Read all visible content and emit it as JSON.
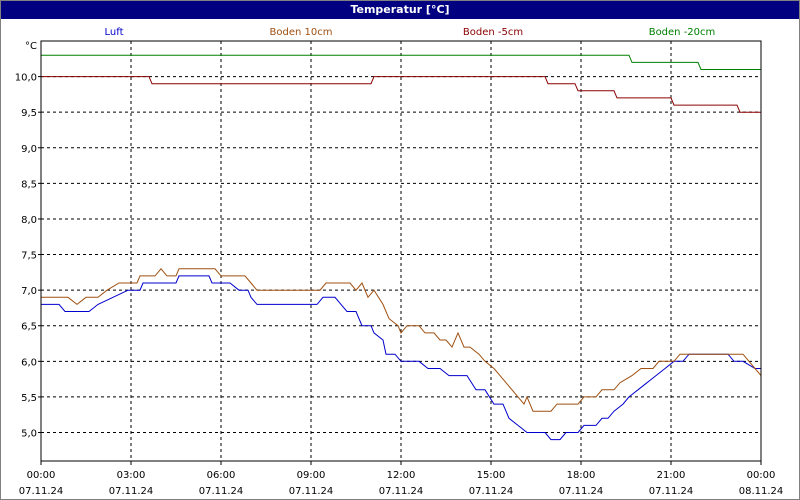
{
  "window": {
    "title": "Temperatur [°C]"
  },
  "chart_data": {
    "type": "line",
    "title": "Temperatur [°C]",
    "y_unit_label": "°C",
    "ylim": [
      4.6,
      10.5
    ],
    "yticks": [
      5.0,
      5.5,
      6.0,
      6.5,
      7.0,
      7.5,
      8.0,
      8.5,
      9.0,
      9.5,
      10.0
    ],
    "ytick_labels": [
      "5,0",
      "5,5",
      "6,0",
      "6,5",
      "7,0",
      "7,5",
      "8,0",
      "8,5",
      "9,0",
      "9,5",
      "10,0"
    ],
    "xlim": [
      0,
      24
    ],
    "xticks": [
      0,
      3,
      6,
      9,
      12,
      15,
      18,
      21,
      24
    ],
    "xtick_time_labels": [
      "00:00",
      "03:00",
      "06:00",
      "09:00",
      "12:00",
      "15:00",
      "18:00",
      "21:00",
      "00:00"
    ],
    "xtick_date_labels": [
      "07.11.24",
      "07.11.24",
      "07.11.24",
      "07.11.24",
      "07.11.24",
      "07.11.24",
      "07.11.24",
      "07.11.24",
      "08.11.24"
    ],
    "grid": true,
    "legend_position": "top",
    "series": [
      {
        "name": "Luft",
        "color": "#0000cc",
        "points": [
          [
            0,
            6.8
          ],
          [
            0.6,
            6.8
          ],
          [
            0.8,
            6.7
          ],
          [
            1.6,
            6.7
          ],
          [
            1.9,
            6.8
          ],
          [
            2.4,
            6.9
          ],
          [
            2.9,
            7.0
          ],
          [
            3.3,
            7.0
          ],
          [
            3.4,
            7.1
          ],
          [
            4.5,
            7.1
          ],
          [
            4.6,
            7.2
          ],
          [
            5.6,
            7.2
          ],
          [
            5.7,
            7.1
          ],
          [
            6.3,
            7.1
          ],
          [
            6.6,
            7.0
          ],
          [
            6.9,
            7.0
          ],
          [
            7.0,
            6.9
          ],
          [
            7.2,
            6.8
          ],
          [
            9.2,
            6.8
          ],
          [
            9.4,
            6.9
          ],
          [
            9.8,
            6.9
          ],
          [
            10.0,
            6.8
          ],
          [
            10.2,
            6.7
          ],
          [
            10.5,
            6.7
          ],
          [
            10.7,
            6.5
          ],
          [
            11.0,
            6.5
          ],
          [
            11.1,
            6.4
          ],
          [
            11.4,
            6.3
          ],
          [
            11.5,
            6.1
          ],
          [
            11.8,
            6.1
          ],
          [
            12.0,
            6.0
          ],
          [
            12.6,
            6.0
          ],
          [
            12.9,
            5.9
          ],
          [
            13.3,
            5.9
          ],
          [
            13.6,
            5.8
          ],
          [
            14.2,
            5.8
          ],
          [
            14.5,
            5.6
          ],
          [
            14.8,
            5.6
          ],
          [
            15.1,
            5.4
          ],
          [
            15.4,
            5.4
          ],
          [
            15.6,
            5.2
          ],
          [
            15.9,
            5.1
          ],
          [
            16.2,
            5.0
          ],
          [
            16.8,
            5.0
          ],
          [
            17.0,
            4.9
          ],
          [
            17.3,
            4.9
          ],
          [
            17.5,
            5.0
          ],
          [
            17.9,
            5.0
          ],
          [
            18.1,
            5.1
          ],
          [
            18.5,
            5.1
          ],
          [
            18.7,
            5.2
          ],
          [
            18.9,
            5.2
          ],
          [
            19.1,
            5.3
          ],
          [
            19.4,
            5.4
          ],
          [
            19.6,
            5.5
          ],
          [
            19.9,
            5.6
          ],
          [
            20.2,
            5.7
          ],
          [
            20.5,
            5.8
          ],
          [
            20.8,
            5.9
          ],
          [
            21.1,
            6.0
          ],
          [
            21.4,
            6.0
          ],
          [
            21.6,
            6.1
          ],
          [
            22.5,
            6.1
          ],
          [
            22.9,
            6.1
          ],
          [
            23.1,
            6.0
          ],
          [
            23.4,
            6.0
          ],
          [
            23.8,
            5.9
          ],
          [
            24,
            5.9
          ]
        ]
      },
      {
        "name": "Boden 10cm",
        "color": "#a05010",
        "points": [
          [
            0,
            6.9
          ],
          [
            0.9,
            6.9
          ],
          [
            1.2,
            6.8
          ],
          [
            1.5,
            6.9
          ],
          [
            1.9,
            6.9
          ],
          [
            2.2,
            7.0
          ],
          [
            2.6,
            7.1
          ],
          [
            3.2,
            7.1
          ],
          [
            3.3,
            7.2
          ],
          [
            3.8,
            7.2
          ],
          [
            4.0,
            7.3
          ],
          [
            4.2,
            7.2
          ],
          [
            4.5,
            7.2
          ],
          [
            4.6,
            7.3
          ],
          [
            5.8,
            7.3
          ],
          [
            6.0,
            7.2
          ],
          [
            6.8,
            7.2
          ],
          [
            7.0,
            7.1
          ],
          [
            7.2,
            7.0
          ],
          [
            9.3,
            7.0
          ],
          [
            9.5,
            7.1
          ],
          [
            10.3,
            7.1
          ],
          [
            10.5,
            7.0
          ],
          [
            10.7,
            7.1
          ],
          [
            10.9,
            6.9
          ],
          [
            11.1,
            7.0
          ],
          [
            11.4,
            6.8
          ],
          [
            11.6,
            6.6
          ],
          [
            11.9,
            6.5
          ],
          [
            12.0,
            6.4
          ],
          [
            12.2,
            6.5
          ],
          [
            12.6,
            6.5
          ],
          [
            12.8,
            6.4
          ],
          [
            13.1,
            6.4
          ],
          [
            13.3,
            6.3
          ],
          [
            13.5,
            6.3
          ],
          [
            13.7,
            6.2
          ],
          [
            13.9,
            6.4
          ],
          [
            14.1,
            6.2
          ],
          [
            14.3,
            6.2
          ],
          [
            14.6,
            6.1
          ],
          [
            14.8,
            6.0
          ],
          [
            15.1,
            5.9
          ],
          [
            15.3,
            5.8
          ],
          [
            15.5,
            5.7
          ],
          [
            15.7,
            5.6
          ],
          [
            15.9,
            5.5
          ],
          [
            16.1,
            5.4
          ],
          [
            16.2,
            5.5
          ],
          [
            16.4,
            5.3
          ],
          [
            17.0,
            5.3
          ],
          [
            17.2,
            5.4
          ],
          [
            17.9,
            5.4
          ],
          [
            18.1,
            5.5
          ],
          [
            18.5,
            5.5
          ],
          [
            18.7,
            5.6
          ],
          [
            19.1,
            5.6
          ],
          [
            19.3,
            5.7
          ],
          [
            19.7,
            5.8
          ],
          [
            20.0,
            5.9
          ],
          [
            20.4,
            5.9
          ],
          [
            20.6,
            6.0
          ],
          [
            21.1,
            6.0
          ],
          [
            21.3,
            6.1
          ],
          [
            23.4,
            6.1
          ],
          [
            23.6,
            6.0
          ],
          [
            23.8,
            5.9
          ],
          [
            24,
            5.8
          ]
        ]
      },
      {
        "name": "Boden -5cm",
        "color": "#8b0000",
        "points": [
          [
            0,
            10.0
          ],
          [
            3.6,
            10.0
          ],
          [
            3.7,
            9.9
          ],
          [
            11.0,
            9.9
          ],
          [
            11.1,
            10.0
          ],
          [
            16.8,
            10.0
          ],
          [
            16.9,
            9.9
          ],
          [
            17.8,
            9.9
          ],
          [
            17.9,
            9.8
          ],
          [
            19.1,
            9.8
          ],
          [
            19.2,
            9.7
          ],
          [
            21.0,
            9.7
          ],
          [
            21.1,
            9.6
          ],
          [
            23.2,
            9.6
          ],
          [
            23.3,
            9.5
          ],
          [
            24,
            9.5
          ]
        ]
      },
      {
        "name": "Boden -20cm",
        "color": "#008000",
        "points": [
          [
            0,
            10.3
          ],
          [
            19.6,
            10.3
          ],
          [
            19.7,
            10.2
          ],
          [
            21.9,
            10.2
          ],
          [
            22.0,
            10.1
          ],
          [
            24,
            10.1
          ]
        ]
      }
    ]
  }
}
